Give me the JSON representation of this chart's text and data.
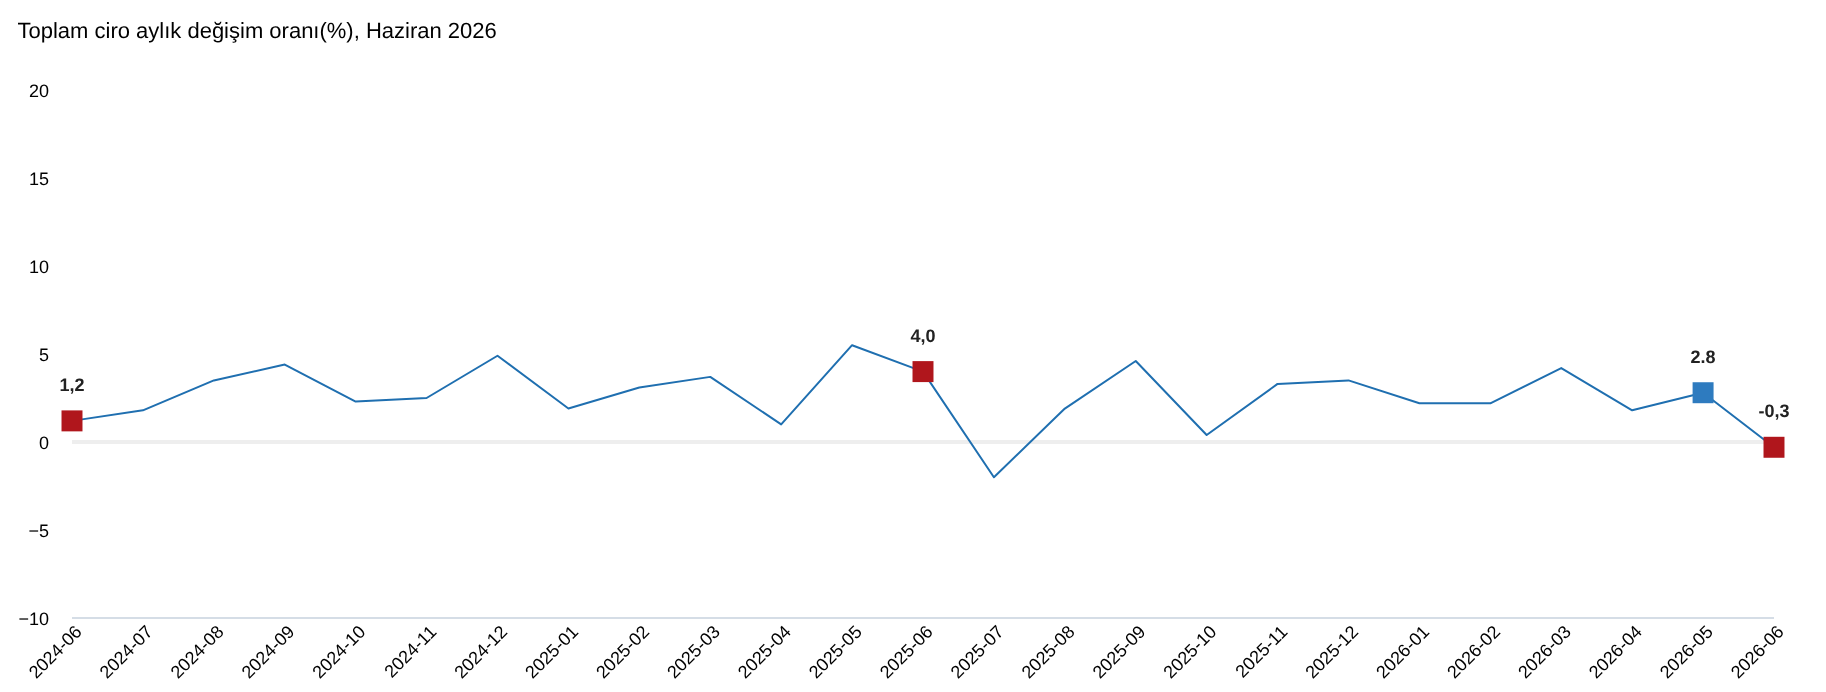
{
  "chart_data": {
    "type": "line",
    "title": "Toplam ciro aylık değişim oranı(%), Haziran 2026",
    "categories": [
      "2024-06",
      "2024-07",
      "2024-08",
      "2024-09",
      "2024-10",
      "2024-11",
      "2024-12",
      "2025-01",
      "2025-02",
      "2025-03",
      "2025-04",
      "2025-05",
      "2025-06",
      "2025-07",
      "2025-08",
      "2025-09",
      "2025-10",
      "2025-11",
      "2025-12",
      "2026-01",
      "2026-02",
      "2026-03",
      "2026-04",
      "2026-05",
      "2026-06"
    ],
    "series": [
      {
        "color": "#1f6fb0",
        "marker": "none",
        "line_style": "solid",
        "values": [
          1.2,
          1.8,
          3.5,
          4.4,
          2.3,
          2.5,
          4.9,
          1.9,
          3.1,
          3.7,
          1.0,
          5.5,
          4.0,
          -2.0,
          1.9,
          4.6,
          0.4,
          3.3,
          3.5,
          2.2,
          2.2,
          4.2,
          1.8,
          2.8,
          -0.3
        ]
      },
      {
        "type": "scatter",
        "marker": "square",
        "colors": [
          "#b0161c",
          null,
          null,
          null,
          null,
          null,
          null,
          null,
          null,
          null,
          null,
          null,
          "#b0161c",
          null,
          null,
          null,
          null,
          null,
          null,
          null,
          null,
          null,
          null,
          "#2e7bbf",
          "#b0161c"
        ],
        "values": [
          1.2,
          null,
          null,
          null,
          null,
          null,
          null,
          null,
          null,
          null,
          null,
          null,
          4.0,
          null,
          null,
          null,
          null,
          null,
          null,
          null,
          null,
          null,
          null,
          2.8,
          -0.3
        ],
        "value_labels": [
          "1,2",
          null,
          null,
          null,
          null,
          null,
          null,
          null,
          null,
          null,
          null,
          null,
          "4,0",
          null,
          null,
          null,
          null,
          null,
          null,
          null,
          null,
          null,
          null,
          "2.8",
          "-0,3"
        ]
      }
    ],
    "ylim": [
      -10,
      20
    ],
    "yticks": [
      -10,
      -5,
      0,
      5,
      10,
      15,
      20
    ],
    "grid": false,
    "ref_lines": [
      {
        "axis": "y",
        "value": 0,
        "color": "#eeeeee"
      }
    ]
  }
}
